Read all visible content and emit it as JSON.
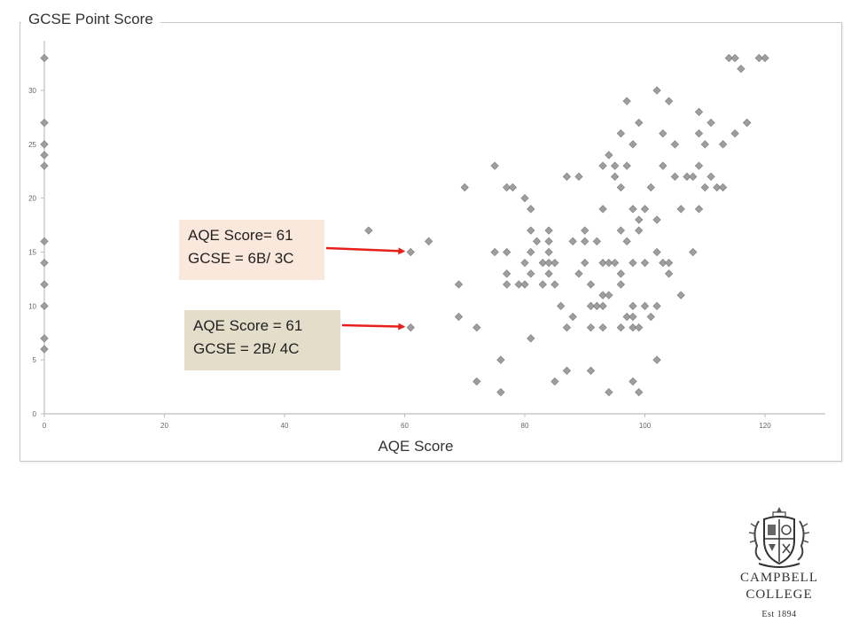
{
  "chart_data": {
    "type": "scatter",
    "title": "GCSE Point Score",
    "xlabel": "AQE Score",
    "ylabel": "GCSE Point Score",
    "xlim": [
      0,
      130
    ],
    "ylim": [
      0,
      33
    ],
    "x_ticks": [
      0,
      20,
      40,
      60,
      80,
      100,
      120
    ],
    "y_ticks": [
      0,
      5,
      10,
      15,
      20,
      25,
      30
    ],
    "grid": false,
    "marker": "diamond",
    "marker_color": "#9e9e9e",
    "points": [
      [
        0,
        33
      ],
      [
        0,
        27
      ],
      [
        0,
        25
      ],
      [
        0,
        24
      ],
      [
        0,
        23
      ],
      [
        0,
        16
      ],
      [
        0,
        14
      ],
      [
        0,
        12
      ],
      [
        0,
        10
      ],
      [
        0,
        7
      ],
      [
        0,
        6
      ],
      [
        54,
        17
      ],
      [
        61,
        15
      ],
      [
        61,
        8
      ],
      [
        64,
        16
      ],
      [
        69,
        12
      ],
      [
        69,
        9
      ],
      [
        70,
        21
      ],
      [
        72,
        8
      ],
      [
        72,
        3
      ],
      [
        75,
        15
      ],
      [
        75,
        23
      ],
      [
        76,
        5
      ],
      [
        76,
        2
      ],
      [
        77,
        21
      ],
      [
        77,
        15
      ],
      [
        77,
        13
      ],
      [
        77,
        12
      ],
      [
        78,
        21
      ],
      [
        79,
        12
      ],
      [
        80,
        20
      ],
      [
        80,
        14
      ],
      [
        80,
        12
      ],
      [
        81,
        19
      ],
      [
        81,
        17
      ],
      [
        81,
        15
      ],
      [
        81,
        13
      ],
      [
        81,
        7
      ],
      [
        82,
        16
      ],
      [
        83,
        14
      ],
      [
        83,
        12
      ],
      [
        84,
        17
      ],
      [
        84,
        16
      ],
      [
        84,
        15
      ],
      [
        84,
        14
      ],
      [
        84,
        13
      ],
      [
        85,
        12
      ],
      [
        85,
        14
      ],
      [
        85,
        3
      ],
      [
        86,
        10
      ],
      [
        87,
        22
      ],
      [
        87,
        8
      ],
      [
        87,
        4
      ],
      [
        88,
        16
      ],
      [
        88,
        9
      ],
      [
        89,
        22
      ],
      [
        89,
        13
      ],
      [
        90,
        17
      ],
      [
        90,
        16
      ],
      [
        90,
        14
      ],
      [
        91,
        12
      ],
      [
        91,
        10
      ],
      [
        91,
        8
      ],
      [
        91,
        4
      ],
      [
        92,
        16
      ],
      [
        92,
        10
      ],
      [
        93,
        23
      ],
      [
        93,
        19
      ],
      [
        93,
        14
      ],
      [
        93,
        11
      ],
      [
        93,
        10
      ],
      [
        93,
        8
      ],
      [
        94,
        24
      ],
      [
        94,
        14
      ],
      [
        94,
        11
      ],
      [
        94,
        2
      ],
      [
        95,
        23
      ],
      [
        95,
        22
      ],
      [
        95,
        14
      ],
      [
        96,
        26
      ],
      [
        96,
        21
      ],
      [
        96,
        17
      ],
      [
        96,
        13
      ],
      [
        96,
        12
      ],
      [
        96,
        8
      ],
      [
        97,
        29
      ],
      [
        97,
        23
      ],
      [
        97,
        16
      ],
      [
        97,
        9
      ],
      [
        98,
        25
      ],
      [
        98,
        19
      ],
      [
        98,
        14
      ],
      [
        98,
        10
      ],
      [
        98,
        9
      ],
      [
        98,
        8
      ],
      [
        98,
        3
      ],
      [
        99,
        27
      ],
      [
        99,
        18
      ],
      [
        99,
        17
      ],
      [
        99,
        8
      ],
      [
        99,
        2
      ],
      [
        100,
        19
      ],
      [
        100,
        14
      ],
      [
        100,
        10
      ],
      [
        101,
        21
      ],
      [
        101,
        9
      ],
      [
        102,
        30
      ],
      [
        102,
        18
      ],
      [
        102,
        15
      ],
      [
        102,
        10
      ],
      [
        102,
        5
      ],
      [
        103,
        26
      ],
      [
        103,
        23
      ],
      [
        103,
        14
      ],
      [
        104,
        29
      ],
      [
        104,
        14
      ],
      [
        104,
        13
      ],
      [
        105,
        25
      ],
      [
        105,
        22
      ],
      [
        106,
        19
      ],
      [
        106,
        11
      ],
      [
        107,
        22
      ],
      [
        108,
        15
      ],
      [
        108,
        22
      ],
      [
        109,
        28
      ],
      [
        109,
        26
      ],
      [
        109,
        23
      ],
      [
        109,
        19
      ],
      [
        110,
        25
      ],
      [
        110,
        21
      ],
      [
        111,
        27
      ],
      [
        111,
        22
      ],
      [
        112,
        21
      ],
      [
        113,
        25
      ],
      [
        113,
        21
      ],
      [
        114,
        33
      ],
      [
        115,
        33
      ],
      [
        115,
        26
      ],
      [
        116,
        32
      ],
      [
        117,
        27
      ],
      [
        117,
        27
      ],
      [
        119,
        33
      ],
      [
        120,
        33
      ]
    ],
    "annotations": [
      {
        "lines": [
          "AQE Score= 61",
          "GCSE = 6B/ 3C"
        ],
        "x": 61,
        "y": 15,
        "box_color": "#fbe8dd"
      },
      {
        "lines": [
          "AQE Score = 61",
          "GCSE = 2B/ 4C"
        ],
        "x": 61,
        "y": 8,
        "box_color": "#e3ddc9"
      }
    ],
    "arrow_color": "#e8201c"
  },
  "logo": {
    "line1": "CAMPBELL",
    "line2": "COLLEGE",
    "est": "Est 1894"
  }
}
